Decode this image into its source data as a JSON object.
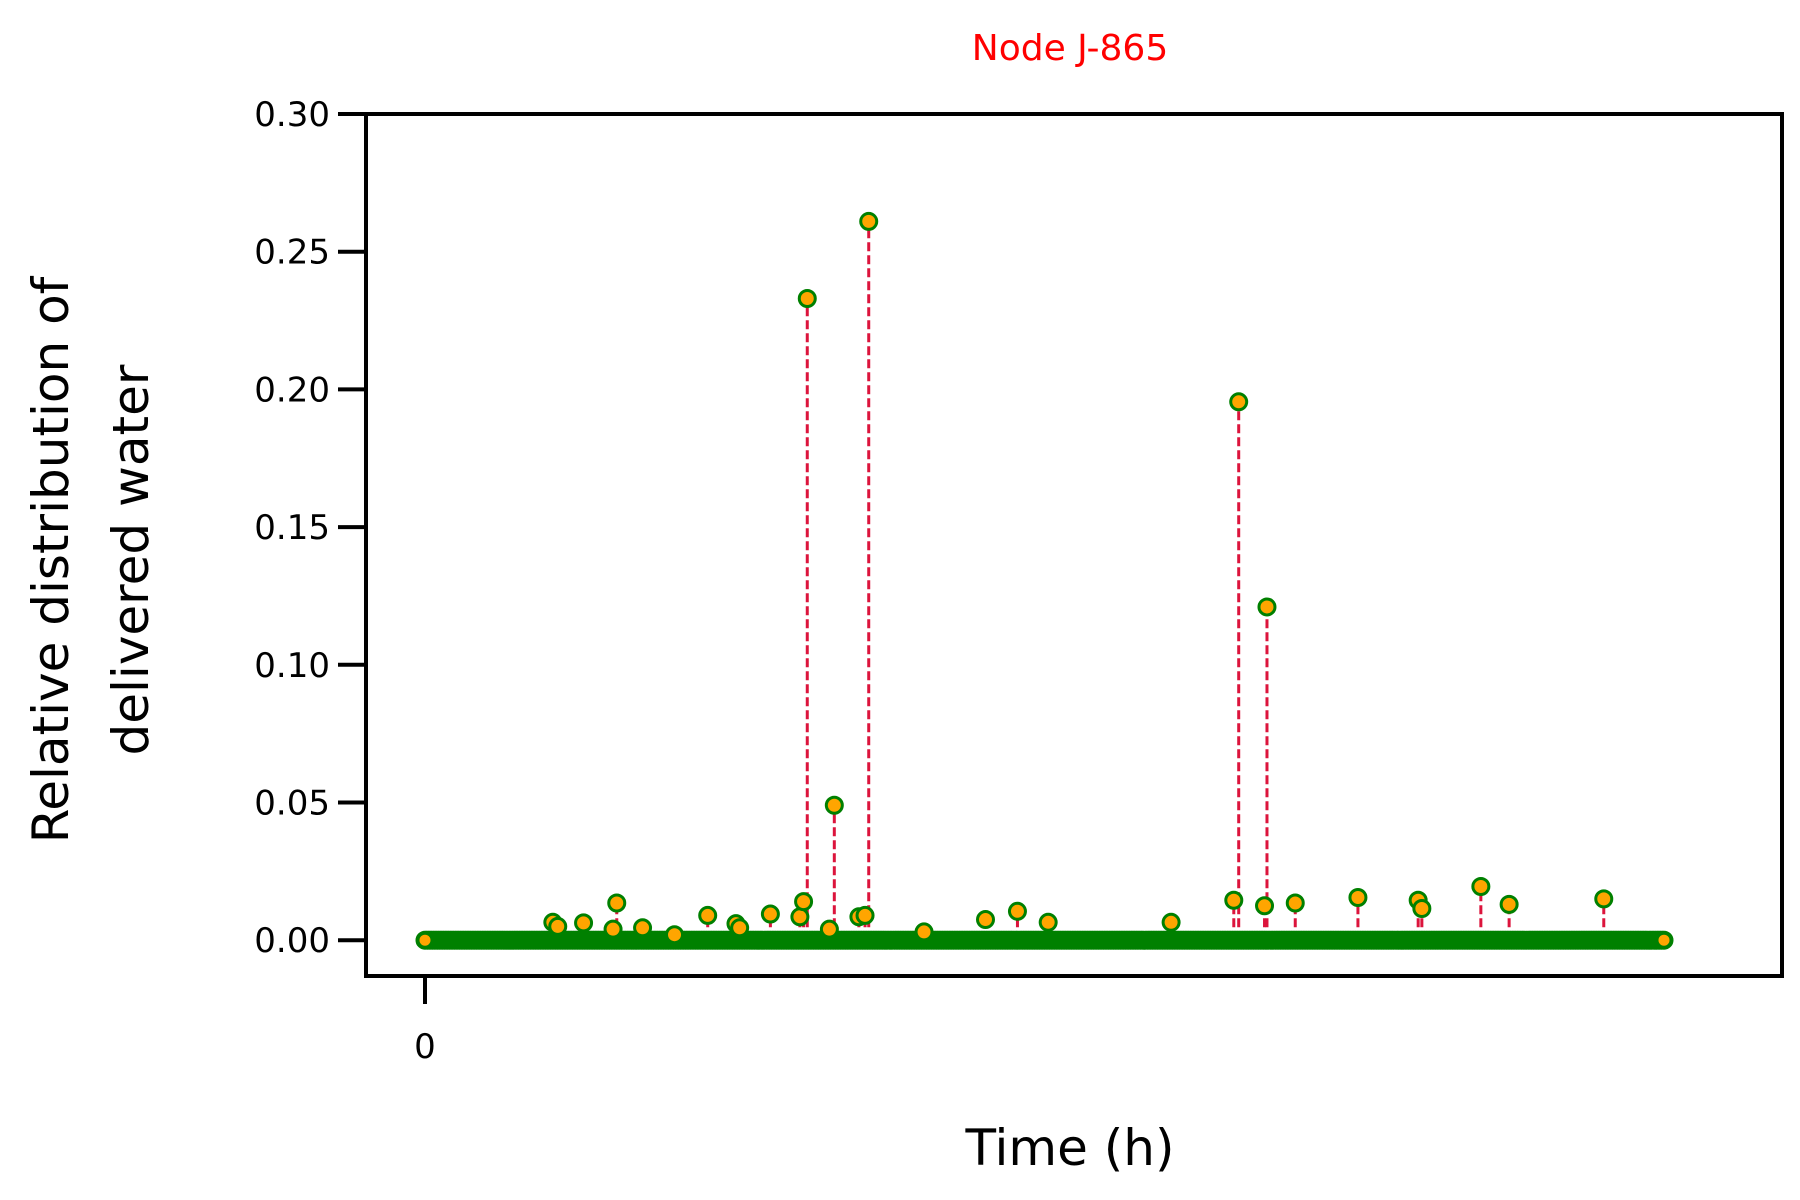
{
  "chart_data": {
    "type": "scatter",
    "title": "Node J-865",
    "title_color": "#ff0000",
    "xlabel": "Time (h)",
    "ylabel_lines": [
      "Relative distribution of",
      "delivered water"
    ],
    "xlim": [
      -48,
      1104
    ],
    "ylim": [
      -0.013,
      0.3
    ],
    "yticks": [
      0.0,
      0.05,
      0.1,
      0.15,
      0.2,
      0.25,
      0.3
    ],
    "ytick_labels": [
      "0.00",
      "0.05",
      "0.10",
      "0.15",
      "0.20",
      "0.25",
      "0.30"
    ],
    "xticks": [
      0
    ],
    "xtick_labels": [
      "0"
    ],
    "x_end": 1008,
    "marker_face_color": "#ffa500",
    "marker_edge_color": "#008000",
    "stem_color": "#dc143c",
    "baseline_color": "#008000",
    "grid": false,
    "series": [
      {
        "points": [
          {
            "x": 0,
            "y": 0
          },
          {
            "x": 104,
            "y": 0.0065
          },
          {
            "x": 108,
            "y": 0.005
          },
          {
            "x": 129,
            "y": 0.0063
          },
          {
            "x": 153,
            "y": 0.004
          },
          {
            "x": 156,
            "y": 0.0135
          },
          {
            "x": 177,
            "y": 0.0045
          },
          {
            "x": 203,
            "y": 0.002
          },
          {
            "x": 230,
            "y": 0.009
          },
          {
            "x": 253,
            "y": 0.006
          },
          {
            "x": 256,
            "y": 0.0045
          },
          {
            "x": 281,
            "y": 0.0095
          },
          {
            "x": 305,
            "y": 0.0085
          },
          {
            "x": 308,
            "y": 0.014
          },
          {
            "x": 311,
            "y": 0.233
          },
          {
            "x": 329,
            "y": 0.004
          },
          {
            "x": 333,
            "y": 0.049
          },
          {
            "x": 353,
            "y": 0.0085
          },
          {
            "x": 358,
            "y": 0.009
          },
          {
            "x": 361,
            "y": 0.261
          },
          {
            "x": 406,
            "y": 0.003
          },
          {
            "x": 456,
            "y": 0.0075
          },
          {
            "x": 482,
            "y": 0.0105
          },
          {
            "x": 507,
            "y": 0.0065
          },
          {
            "x": 607,
            "y": 0.0065
          },
          {
            "x": 658,
            "y": 0.0145
          },
          {
            "x": 662,
            "y": 0.1955
          },
          {
            "x": 683,
            "y": 0.0125
          },
          {
            "x": 685,
            "y": 0.121
          },
          {
            "x": 708,
            "y": 0.0135
          },
          {
            "x": 759,
            "y": 0.0155
          },
          {
            "x": 808,
            "y": 0.0145
          },
          {
            "x": 811,
            "y": 0.0115
          },
          {
            "x": 859,
            "y": 0.0195
          },
          {
            "x": 882,
            "y": 0.013
          },
          {
            "x": 959,
            "y": 0.015
          },
          {
            "x": 1008,
            "y": 0
          }
        ]
      }
    ]
  }
}
